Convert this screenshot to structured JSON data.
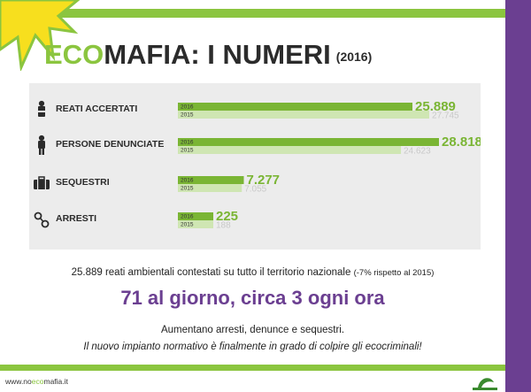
{
  "header": {
    "title_eco": "ECO",
    "title_rest": "MAFIA: I NUMERI",
    "title_year": "(2016)"
  },
  "chart_data": {
    "type": "bar",
    "orientation": "horizontal",
    "categories": [
      "REATI ACCERTATI",
      "PERSONE DENUNCIATE",
      "SEQUESTRI",
      "ARRESTI"
    ],
    "icons": [
      "handcuffed-person-icon",
      "person-icon",
      "briefcase-icon",
      "handcuffs-icon"
    ],
    "series": [
      {
        "name": "2016",
        "color": "#7ab534",
        "values": [
          25889,
          28818,
          7277,
          225
        ],
        "labels": [
          "25.889",
          "28.818",
          "7.277",
          "225"
        ]
      },
      {
        "name": "2015",
        "color": "#cfe6b3",
        "values": [
          27745,
          24623,
          7055,
          188
        ],
        "labels": [
          "27.745",
          "24.623",
          "7.055",
          "188"
        ]
      }
    ],
    "title": "",
    "xlabel": "",
    "ylabel": "",
    "grid": false,
    "legend": "none"
  },
  "stats": {
    "line1": "25.889 reati ambientali contestati su tutto il territorio nazionale",
    "line1_note": "(-7% rispetto al 2015)",
    "headline": "71 al giorno, circa 3 ogni ora",
    "line3": "Aumentano  arresti, denunce e sequestri.",
    "line4": "Il nuovo impianto normativo è finalmente in grado di colpire gli ecocriminali!"
  },
  "footer": {
    "website_prefix": "www.no",
    "website_mid": "eco",
    "website_suffix": "mafia.it"
  },
  "colors": {
    "accent_green": "#8bc53f",
    "accent_purple": "#6b3f91",
    "bar_2016": "#7ab534",
    "bar_2015": "#cfe6b3"
  }
}
